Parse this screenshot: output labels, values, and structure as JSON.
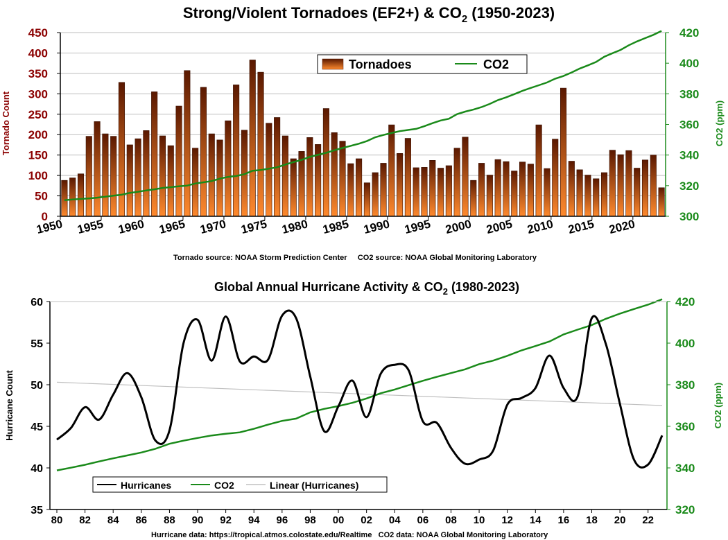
{
  "colors": {
    "bar_top": "#5a1800",
    "bar_bottom": "#ff8a2e",
    "co2": "#1a8a1a",
    "hurricane": "#000000",
    "trend": "#c0c0c0",
    "left_axis_1": "#8b0000",
    "right_axis": "#1a8a1a"
  },
  "chart_data": [
    {
      "type": "bar",
      "title": "Strong/Violent Tornadoes (EF2+) & CO",
      "title_sub": "2",
      "title_suffix": "  (1950-2023)",
      "ylabel": "Tornado Count",
      "y2label": "CO2 (ppm)",
      "ylim": [
        0,
        450
      ],
      "y2lim": [
        300,
        420
      ],
      "yticks": [
        "0",
        "50",
        "100",
        "150",
        "200",
        "250",
        "300",
        "350",
        "400",
        "450"
      ],
      "y2ticks": [
        "300",
        "320",
        "340",
        "360",
        "380",
        "400",
        "420"
      ],
      "xticks": [
        "1950",
        "1955",
        "1960",
        "1965",
        "1970",
        "1975",
        "1980",
        "1985",
        "1990",
        "1995",
        "2000",
        "2005",
        "2010",
        "2015",
        "2020"
      ],
      "legend": {
        "bars": "Tornadoes",
        "line": "CO2",
        "placement": "top-center"
      },
      "source_note": "Tornado source: NOAA Storm Prediction Center     CO2 source: NOAA Global Monitoring Laboratory",
      "years_start": 1950,
      "series": [
        {
          "name": "Tornadoes",
          "values": [
            88,
            94,
            104,
            196,
            232,
            202,
            196,
            328,
            175,
            190,
            210,
            305,
            197,
            173,
            270,
            357,
            167,
            316,
            202,
            187,
            234,
            322,
            211,
            383,
            353,
            228,
            242,
            197,
            141,
            159,
            193,
            176,
            264,
            205,
            184,
            129,
            141,
            82,
            107,
            130,
            224,
            154,
            191,
            119,
            120,
            137,
            118,
            124,
            167,
            194,
            88,
            130,
            101,
            139,
            134,
            111,
            133,
            128,
            224,
            117,
            189,
            314,
            135,
            114,
            101,
            92,
            107,
            162,
            151,
            161,
            118,
            138,
            150,
            70
          ]
        },
        {
          "name": "CO2",
          "values": [
            310.5,
            311.0,
            311.3,
            311.7,
            312.2,
            312.8,
            313.5,
            314.1,
            315.3,
            316.0,
            316.9,
            317.6,
            318.5,
            319.0,
            319.6,
            320.0,
            321.4,
            322.2,
            323.0,
            324.6,
            325.7,
            326.3,
            327.5,
            329.7,
            330.2,
            331.1,
            332.0,
            333.8,
            335.4,
            336.8,
            338.8,
            340.1,
            341.5,
            343.1,
            344.6,
            346.0,
            347.4,
            349.2,
            351.6,
            353.1,
            354.4,
            355.6,
            356.4,
            357.1,
            358.8,
            360.8,
            362.6,
            363.7,
            366.7,
            368.4,
            369.7,
            371.3,
            373.4,
            375.9,
            377.7,
            379.8,
            381.9,
            383.8,
            385.6,
            387.4,
            389.9,
            391.6,
            393.9,
            396.5,
            398.6,
            400.8,
            404.2,
            406.5,
            408.7,
            411.7,
            414.2,
            416.4,
            418.5,
            421.1
          ]
        }
      ]
    },
    {
      "type": "line",
      "title": "Global Annual Hurricane Activity & CO",
      "title_sub": "2",
      "title_suffix": " (1980-2023)",
      "ylabel": "Hurricane Count",
      "y2label": "CO2 (ppm)",
      "ylim": [
        35,
        60
      ],
      "y2lim": [
        320,
        420
      ],
      "yticks": [
        "35",
        "40",
        "45",
        "50",
        "55",
        "60"
      ],
      "y2ticks": [
        "320",
        "340",
        "360",
        "380",
        "400",
        "420"
      ],
      "xticks": [
        "80",
        "82",
        "84",
        "86",
        "88",
        "90",
        "92",
        "94",
        "96",
        "98",
        "00",
        "02",
        "04",
        "06",
        "08",
        "10",
        "12",
        "14",
        "16",
        "18",
        "20",
        "22"
      ],
      "legend": {
        "hurricanes": "Hurricanes",
        "co2": "CO2",
        "trend": "Linear (Hurricanes)",
        "placement": "bottom-left"
      },
      "source_note": "Hurricane data: https://tropical.atmos.colostate.edu/Realtime   CO2 data: NOAA Global Monitoring Laboratory",
      "years_start": 1980,
      "trend": {
        "start": 50.3,
        "end": 47.5
      },
      "series": [
        {
          "name": "Hurricanes",
          "values": [
            43.4,
            44.8,
            47.3,
            45.8,
            48.8,
            51.4,
            48.5,
            43.3,
            44.5,
            55.0,
            57.8,
            52.9,
            58.2,
            52.8,
            53.4,
            53.0,
            58.3,
            58.0,
            51.0,
            44.4,
            47.4,
            50.5,
            46.1,
            51.3,
            52.4,
            51.7,
            45.6,
            45.4,
            42.4,
            40.5,
            41.0,
            42.1,
            47.6,
            48.4,
            49.6,
            53.5,
            49.6,
            48.6,
            58.0,
            54.9,
            47.7,
            41.0,
            40.4,
            43.9
          ]
        },
        {
          "name": "CO2",
          "values": [
            338.8,
            340.1,
            341.5,
            343.1,
            344.6,
            346.0,
            347.4,
            349.2,
            351.6,
            353.1,
            354.4,
            355.6,
            356.4,
            357.1,
            358.8,
            360.8,
            362.6,
            363.7,
            366.7,
            368.4,
            369.7,
            371.3,
            373.4,
            375.9,
            377.7,
            379.8,
            381.9,
            383.8,
            385.6,
            387.4,
            389.9,
            391.6,
            393.9,
            396.5,
            398.6,
            400.8,
            404.2,
            406.5,
            408.7,
            411.7,
            414.2,
            416.4,
            418.5,
            421.1
          ]
        }
      ]
    }
  ]
}
